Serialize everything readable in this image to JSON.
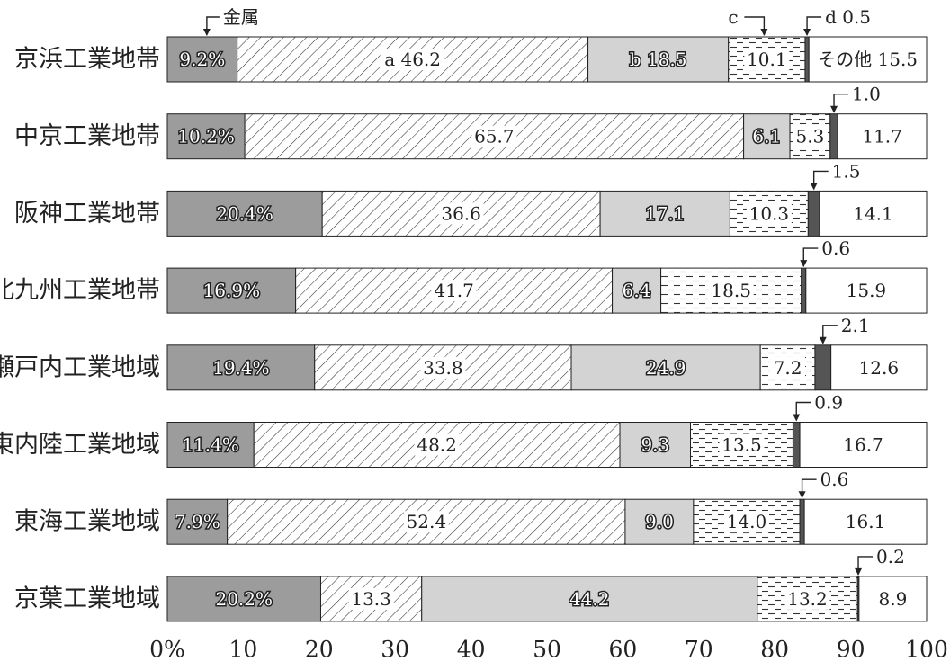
{
  "chart_data": {
    "type": "bar",
    "orientation": "horizontal",
    "stacked": true,
    "xlim": [
      0,
      100
    ],
    "ticks": [
      "0%",
      "10",
      "20",
      "30",
      "40",
      "50",
      "60",
      "70",
      "80",
      "90",
      "100"
    ],
    "categories": [
      "京浜工業地帯",
      "中京工業地帯",
      "阪神工業地帯",
      "北九州工業地帯",
      "瀬戸内工業地域",
      "関東内陸工業地域",
      "東海工業地域",
      "京葉工業地域"
    ],
    "series": [
      {
        "name": "金属",
        "color": "#9c9c9c",
        "values": [
          9.2,
          10.2,
          20.4,
          16.9,
          19.4,
          11.4,
          7.9,
          20.2
        ]
      },
      {
        "name": "a",
        "color": "#ffffff",
        "values": [
          46.2,
          65.7,
          36.6,
          41.7,
          33.8,
          48.2,
          52.4,
          13.3
        ]
      },
      {
        "name": "b",
        "color": "#d3d3d3",
        "values": [
          18.5,
          6.1,
          17.1,
          6.4,
          24.9,
          9.3,
          9.0,
          44.2
        ]
      },
      {
        "name": "c",
        "color": "#ffffff",
        "values": [
          10.1,
          5.3,
          10.3,
          18.5,
          7.2,
          13.5,
          14.0,
          13.2
        ]
      },
      {
        "name": "d",
        "color": "#555555",
        "values": [
          0.5,
          1.0,
          1.5,
          0.6,
          2.1,
          0.9,
          0.6,
          0.2
        ]
      },
      {
        "name": "その他",
        "color": "#ffffff",
        "values": [
          15.5,
          11.7,
          14.1,
          15.9,
          12.6,
          16.7,
          16.1,
          8.9
        ]
      }
    ],
    "segment_labels": [
      [
        "9.2%",
        "a 46.2",
        "b 18.5",
        "10.1",
        "",
        "その他 15.5"
      ],
      [
        "10.2%",
        "65.7",
        "6.1",
        "5.3",
        "",
        "11.7"
      ],
      [
        "20.4%",
        "36.6",
        "17.1",
        "10.3",
        "",
        "14.1"
      ],
      [
        "16.9%",
        "41.7",
        "6.4",
        "18.5",
        "",
        "15.9"
      ],
      [
        "19.4%",
        "33.8",
        "24.9",
        "7.2",
        "",
        "12.6"
      ],
      [
        "11.4%",
        "48.2",
        "9.3",
        "13.5",
        "",
        "16.7"
      ],
      [
        "7.9%",
        "52.4",
        "9.0",
        "14.0",
        "",
        "16.1"
      ],
      [
        "20.2%",
        "13.3",
        "44.2",
        "13.2",
        "",
        "8.9"
      ]
    ],
    "callouts": {
      "metal": "金属",
      "c": "c",
      "d": [
        "d 0.5",
        "1.0",
        "1.5",
        "0.6",
        "2.1",
        "0.9",
        "0.6",
        "0.2"
      ]
    }
  }
}
